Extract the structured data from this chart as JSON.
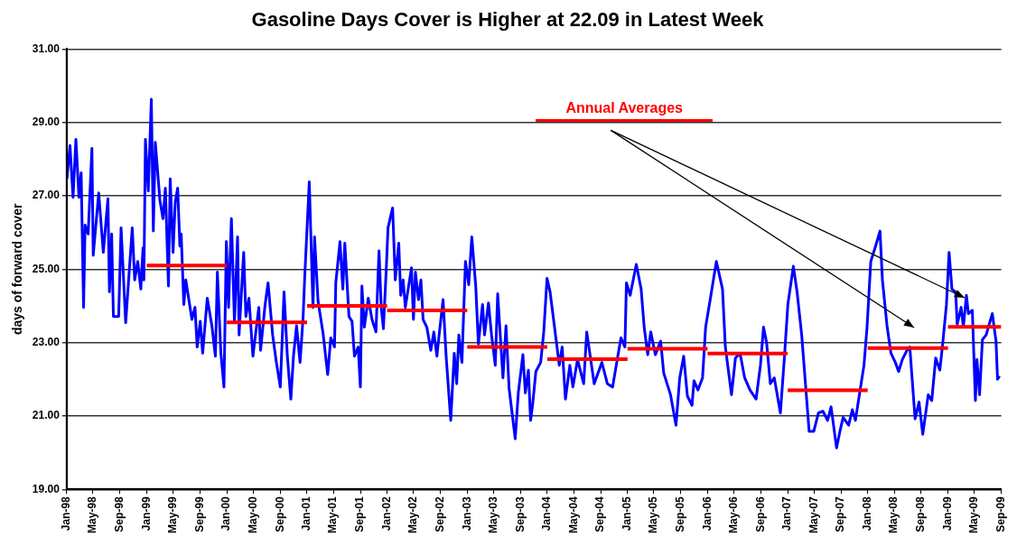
{
  "chart_data": {
    "type": "line",
    "title": "Gasoline Days Cover is Higher at 22.09 in Latest Week",
    "ylabel": "days of forward cover",
    "xlim": [
      "1998-01",
      "2009-09"
    ],
    "xticks": [
      {
        "value": "1998-01",
        "label": "Jan-98"
      },
      {
        "value": "1998-05",
        "label": "May-98"
      },
      {
        "value": "1998-09",
        "label": "Sep-98"
      },
      {
        "value": "1999-01",
        "label": "Jan-99"
      },
      {
        "value": "1999-05",
        "label": "May-99"
      },
      {
        "value": "1999-09",
        "label": "Sep-99"
      },
      {
        "value": "2000-01",
        "label": "Jan-00"
      },
      {
        "value": "2000-05",
        "label": "May-00"
      },
      {
        "value": "2000-09",
        "label": "Sep-00"
      },
      {
        "value": "2001-01",
        "label": "Jan-01"
      },
      {
        "value": "2001-05",
        "label": "May-01"
      },
      {
        "value": "2001-09",
        "label": "Sep-01"
      },
      {
        "value": "2002-01",
        "label": "Jan-02"
      },
      {
        "value": "2002-05",
        "label": "May-02"
      },
      {
        "value": "2002-09",
        "label": "Sep-02"
      },
      {
        "value": "2003-01",
        "label": "Jan-03"
      },
      {
        "value": "2003-05",
        "label": "May-03"
      },
      {
        "value": "2003-09",
        "label": "Sep-03"
      },
      {
        "value": "2004-01",
        "label": "Jan-04"
      },
      {
        "value": "2004-05",
        "label": "May-04"
      },
      {
        "value": "2004-09",
        "label": "Sep-04"
      },
      {
        "value": "2005-01",
        "label": "Jan-05"
      },
      {
        "value": "2005-05",
        "label": "May-05"
      },
      {
        "value": "2005-09",
        "label": "Sep-05"
      },
      {
        "value": "2006-01",
        "label": "Jan-06"
      },
      {
        "value": "2006-05",
        "label": "May-06"
      },
      {
        "value": "2006-09",
        "label": "Sep-06"
      },
      {
        "value": "2007-01",
        "label": "Jan-07"
      },
      {
        "value": "2007-05",
        "label": "May-07"
      },
      {
        "value": "2007-09",
        "label": "Sep-07"
      },
      {
        "value": "2008-01",
        "label": "Jan-08"
      },
      {
        "value": "2008-05",
        "label": "May-08"
      },
      {
        "value": "2008-09",
        "label": "Sep-08"
      },
      {
        "value": "2009-01",
        "label": "Jan-09"
      },
      {
        "value": "2009-05",
        "label": "May-09"
      },
      {
        "value": "2009-09",
        "label": "Sep-09"
      }
    ],
    "ylim": [
      19,
      31
    ],
    "yticks": [
      {
        "value": 19,
        "label": "19.00"
      },
      {
        "value": 21,
        "label": "21.00"
      },
      {
        "value": 23,
        "label": "23.00"
      },
      {
        "value": 25,
        "label": "25.00"
      },
      {
        "value": 27,
        "label": "27.00"
      },
      {
        "value": 29,
        "label": "29.00"
      },
      {
        "value": 31,
        "label": "31.00"
      }
    ],
    "grid": "y",
    "legend": "top",
    "series": [
      {
        "color": "#0000ff",
        "x": [
          "1998-01-02",
          "1998-01-16",
          "1998-01-30",
          "1998-02-12",
          "1998-02-26",
          "1998-03-08",
          "1998-03-19",
          "1998-03-26",
          "1998-04-09",
          "1998-04-26",
          "1998-05-02",
          "1998-05-27",
          "1998-06-17",
          "1998-07-08",
          "1998-07-15",
          "1998-07-25",
          "1998-08-02",
          "1998-08-26",
          "1998-09-06",
          "1998-09-27",
          "1998-10-27",
          "1998-11-07",
          "1998-11-21",
          "1998-12-05",
          "1998-12-15",
          "1998-12-19",
          "1998-12-26",
          "1999-01-08",
          "1999-01-22",
          "1999-01-31",
          "1999-02-09",
          "1999-03-02",
          "1999-03-16",
          "1999-03-27",
          "1999-04-10",
          "1999-04-18",
          "1999-05-01",
          "1999-05-11",
          "1999-05-22",
          "1999-06-01",
          "1999-06-07",
          "1999-06-19",
          "1999-06-28",
          "1999-07-26",
          "1999-08-09",
          "1999-08-19",
          "1999-09-02",
          "1999-09-13",
          "1999-10-04",
          "1999-10-25",
          "1999-11-10",
          "1999-11-19",
          "1999-12-05",
          "1999-12-19",
          "1999-12-30",
          "2000-01-09",
          "2000-01-22",
          "2000-02-05",
          "2000-02-19",
          "2000-02-26",
          "2000-03-18",
          "2000-03-28",
          "2000-04-11",
          "2000-04-29",
          "2000-05-26",
          "2000-06-03",
          "2000-06-23",
          "2000-07-07",
          "2000-07-28",
          "2000-08-14",
          "2000-09-01",
          "2000-09-18",
          "2000-10-03",
          "2000-10-19",
          "2000-10-31",
          "2000-11-14",
          "2000-11-30",
          "2000-12-14",
          "2000-12-21",
          "2001-01-11",
          "2001-01-28",
          "2001-02-04",
          "2001-02-20",
          "2001-03-15",
          "2001-04-05",
          "2001-04-19",
          "2001-05-06",
          "2001-05-12",
          "2001-05-31",
          "2001-06-13",
          "2001-06-22",
          "2001-07-11",
          "2001-07-25",
          "2001-08-05",
          "2001-08-22",
          "2001-09-01",
          "2001-09-08",
          "2001-09-19",
          "2001-10-07",
          "2001-10-24",
          "2001-11-11",
          "2001-11-25",
          "2001-12-05",
          "2001-12-15",
          "2001-12-29",
          "2002-01-05",
          "2002-01-26",
          "2002-02-07",
          "2002-02-23",
          "2002-03-04",
          "2002-03-15",
          "2002-03-25",
          "2002-04-22",
          "2002-05-01",
          "2002-05-10",
          "2002-05-24",
          "2002-06-04",
          "2002-06-14",
          "2002-07-01",
          "2002-07-19",
          "2002-08-02",
          "2002-08-16",
          "2002-08-26",
          "2002-09-13",
          "2002-09-27",
          "2002-10-18",
          "2002-11-03",
          "2002-11-14",
          "2002-11-24",
          "2002-12-08",
          "2002-12-24",
          "2003-01-08",
          "2003-01-22",
          "2003-02-09",
          "2003-02-21",
          "2003-03-12",
          "2003-03-21",
          "2003-04-08",
          "2003-04-22",
          "2003-05-09",
          "2003-05-20",
          "2003-06-13",
          "2003-06-27",
          "2003-07-11",
          "2003-08-08",
          "2003-08-22",
          "2003-09-12",
          "2003-09-23",
          "2003-10-07",
          "2003-10-17",
          "2003-10-26",
          "2003-11-10",
          "2003-12-02",
          "2003-12-16",
          "2003-12-31",
          "2004-01-14",
          "2004-02-04",
          "2004-02-25",
          "2004-03-09",
          "2004-03-24",
          "2004-04-13",
          "2004-04-27",
          "2004-05-18",
          "2004-06-15",
          "2004-06-29",
          "2004-08-02",
          "2004-09-06",
          "2004-10-01",
          "2004-10-25",
          "2004-11-15",
          "2004-12-02",
          "2004-12-20",
          "2004-12-27",
          "2005-01-13",
          "2005-02-10",
          "2005-03-04",
          "2005-03-18",
          "2005-04-03",
          "2005-04-17",
          "2005-05-08",
          "2005-06-01",
          "2005-06-15",
          "2005-07-16",
          "2005-08-10",
          "2005-08-27",
          "2005-09-14",
          "2005-10-01",
          "2005-10-22",
          "2005-10-31",
          "2005-11-18",
          "2005-12-09",
          "2005-12-23",
          "2006-01-13",
          "2006-02-10",
          "2006-03-10",
          "2006-03-23",
          "2006-04-20",
          "2006-05-08",
          "2006-05-29",
          "2006-06-19",
          "2006-07-13",
          "2006-08-10",
          "2006-08-30",
          "2006-09-13",
          "2006-09-27",
          "2006-10-14",
          "2006-11-01",
          "2006-11-29",
          "2006-12-17",
          "2007-01-02",
          "2007-01-27",
          "2007-02-13",
          "2007-03-06",
          "2007-04-09",
          "2007-04-30",
          "2007-05-21",
          "2007-06-11",
          "2007-07-02",
          "2007-07-18",
          "2007-08-12",
          "2007-08-29",
          "2007-09-11",
          "2007-10-06",
          "2007-10-23",
          "2007-11-06",
          "2007-11-24",
          "2007-12-15",
          "2007-12-29",
          "2008-01-15",
          "2008-02-06",
          "2008-02-26",
          "2008-03-08",
          "2008-03-29",
          "2008-04-16",
          "2008-05-06",
          "2008-05-21",
          "2008-06-07",
          "2008-06-28",
          "2008-07-11",
          "2008-08-04",
          "2008-08-22",
          "2008-09-08",
          "2008-10-03",
          "2008-10-19",
          "2008-11-06",
          "2008-11-25",
          "2008-12-09",
          "2008-12-25",
          "2009-01-06",
          "2009-01-19",
          "2009-02-05",
          "2009-02-12",
          "2009-03-02",
          "2009-03-12",
          "2009-03-26",
          "2009-04-04",
          "2009-04-22",
          "2009-05-06",
          "2009-05-13",
          "2009-05-25",
          "2009-06-07",
          "2009-06-24",
          "2009-07-08",
          "2009-07-22",
          "2009-08-08",
          "2009-08-15",
          "2009-08-24"
        ],
        "values": [
          27.46,
          28.37,
          26.96,
          28.54,
          26.96,
          27.63,
          23.96,
          26.2,
          25.96,
          28.29,
          25.38,
          27.08,
          25.46,
          26.92,
          24.38,
          25.96,
          23.71,
          23.71,
          26.13,
          23.54,
          26.13,
          24.71,
          25.21,
          24.46,
          25.58,
          24.71,
          28.54,
          27.13,
          29.63,
          26.04,
          28.46,
          26.88,
          26.38,
          27.21,
          24.54,
          27.46,
          25.46,
          26.83,
          27.21,
          25.63,
          25.96,
          24.04,
          24.71,
          23.63,
          23.96,
          22.88,
          23.58,
          22.71,
          24.21,
          23.46,
          22.63,
          24.92,
          22.71,
          21.79,
          25.75,
          23.96,
          26.38,
          23.54,
          25.88,
          23.21,
          25.46,
          23.71,
          24.21,
          22.63,
          23.96,
          22.79,
          24.0,
          24.63,
          23.21,
          22.46,
          21.79,
          24.38,
          22.63,
          21.46,
          22.63,
          23.46,
          22.46,
          23.71,
          24.75,
          27.38,
          23.96,
          25.88,
          24.13,
          23.25,
          22.13,
          23.13,
          22.88,
          24.63,
          25.75,
          24.46,
          25.71,
          23.71,
          23.58,
          22.63,
          22.88,
          21.79,
          24.54,
          23.42,
          24.21,
          23.63,
          23.29,
          25.5,
          23.96,
          23.38,
          25.13,
          26.13,
          26.67,
          24.71,
          25.71,
          24.29,
          24.71,
          23.96,
          25.04,
          23.63,
          24.92,
          24.17,
          24.71,
          23.63,
          23.42,
          22.79,
          23.29,
          22.63,
          23.21,
          24.17,
          22.63,
          20.88,
          22.71,
          21.88,
          23.21,
          22.46,
          25.21,
          24.58,
          25.88,
          24.54,
          22.96,
          24.04,
          23.21,
          24.08,
          23.21,
          22.38,
          24.33,
          22.04,
          23.46,
          21.75,
          20.38,
          21.63,
          22.67,
          21.63,
          22.25,
          20.88,
          21.29,
          22.21,
          22.46,
          23.29,
          24.75,
          24.38,
          23.38,
          22.38,
          22.88,
          21.46,
          22.38,
          21.79,
          22.54,
          21.88,
          23.29,
          21.88,
          22.46,
          21.88,
          21.79,
          22.54,
          23.13,
          22.88,
          24.63,
          24.29,
          25.13,
          24.46,
          23.42,
          22.67,
          23.29,
          22.67,
          23.04,
          22.17,
          21.58,
          20.75,
          22.04,
          22.63,
          21.54,
          21.29,
          21.96,
          21.71,
          22.04,
          23.42,
          24.17,
          25.21,
          24.46,
          22.88,
          21.58,
          22.58,
          22.71,
          22.04,
          21.71,
          21.46,
          22.38,
          23.42,
          23.0,
          21.88,
          22.04,
          21.08,
          22.58,
          24.04,
          25.08,
          24.38,
          23.21,
          20.58,
          20.58,
          21.08,
          21.13,
          20.88,
          21.25,
          20.13,
          20.63,
          20.96,
          20.75,
          21.17,
          20.88,
          21.58,
          22.38,
          23.42,
          25.21,
          25.63,
          26.04,
          24.71,
          23.46,
          22.71,
          22.46,
          22.21,
          22.54,
          22.79,
          22.88,
          20.92,
          21.38,
          20.5,
          21.58,
          21.42,
          22.58,
          22.25,
          23.04,
          24.04,
          25.46,
          24.46,
          24.38,
          23.5,
          23.96,
          23.42,
          24.29,
          23.79,
          23.88,
          21.42,
          22.54,
          21.58,
          23.08,
          23.21,
          23.5,
          23.79,
          23.04,
          22.0,
          22.09
        ]
      },
      {
        "name": "Annual Averages",
        "color": "#ff0000",
        "x": [
          "1999-01-01",
          "2000-01-01",
          "2000-01-01",
          "2001-01-01",
          "2001-01-01",
          "2002-01-01",
          "2002-01-01",
          "2003-01-01",
          "2003-01-01",
          "2004-01-01",
          "2004-01-01",
          "2005-01-01",
          "2005-01-01",
          "2006-01-01",
          "2006-01-01",
          "2007-01-01",
          "2007-01-01",
          "2008-01-01",
          "2008-01-01",
          "2009-01-01",
          "2009-01-01",
          "2009-09-01"
        ],
        "values": [
          25.1,
          25.1,
          23.55,
          23.55,
          24.0,
          24.0,
          23.88,
          23.88,
          22.88,
          22.88,
          22.55,
          22.55,
          22.83,
          22.83,
          22.7,
          22.7,
          21.7,
          21.7,
          22.85,
          22.85,
          23.43,
          23.43
        ]
      }
    ]
  }
}
